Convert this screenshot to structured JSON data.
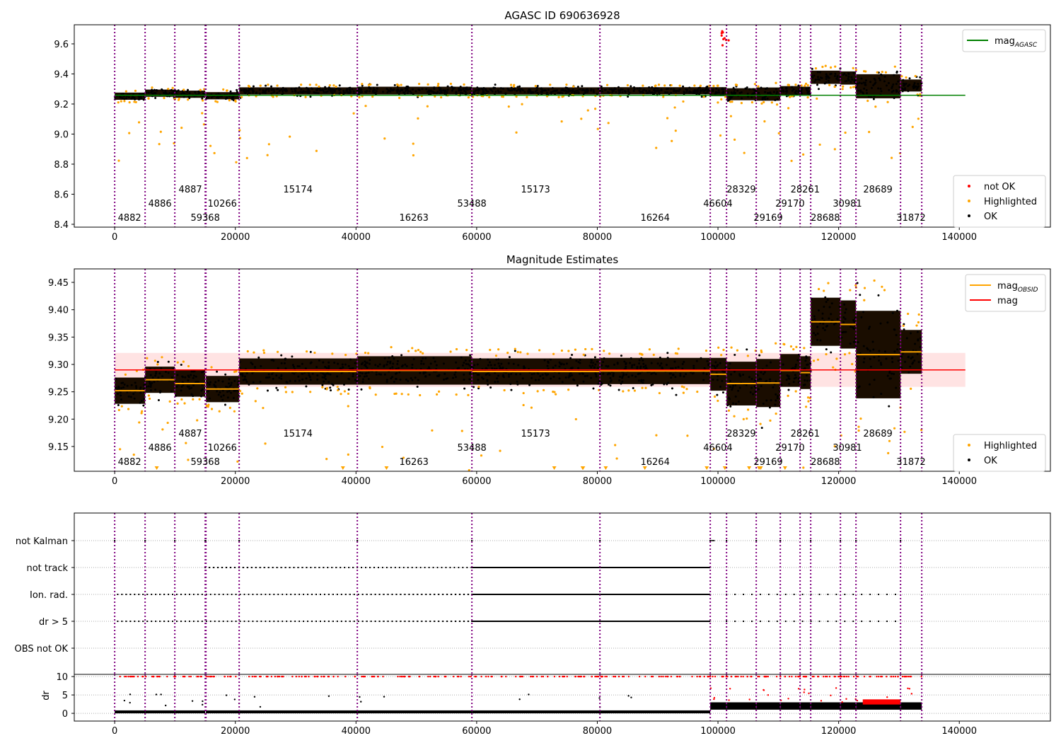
{
  "chart_data": [
    {
      "type": "scatter",
      "title": "AGASC ID 690636928",
      "ylim": [
        8.381,
        9.727
      ],
      "xlim": [
        -6700,
        155100
      ],
      "yticks": [
        "8.4",
        "8.6",
        "8.8",
        "9.0",
        "9.2",
        "9.4",
        "9.6"
      ],
      "legend_top": {
        "placement": "top-right",
        "entries": [
          {
            "label": "mag",
            "sub": "AGASC",
            "color": "#008000"
          }
        ]
      },
      "legend_bottom": {
        "placement": "bottom-right",
        "entries": [
          {
            "label": "not OK",
            "color": "#ff0000"
          },
          {
            "label": "Highlighted",
            "color": "#ffa500"
          },
          {
            "label": "OK",
            "color": "#000000"
          }
        ]
      },
      "mag_agasc": 9.258
    },
    {
      "type": "scatter",
      "title": "Magnitude Estimates",
      "ylim": [
        9.1047,
        9.4746
      ],
      "xlim": [
        -6700,
        155100
      ],
      "yticks": [
        "9.15",
        "9.20",
        "9.25",
        "9.30",
        "9.35",
        "9.40",
        "9.45"
      ],
      "legend_top": {
        "placement": "top-right",
        "entries": [
          {
            "label": "mag",
            "sub": "OBSID",
            "color": "#ffa500"
          },
          {
            "label": "mag",
            "sub": "",
            "color": "#ff0000"
          }
        ]
      },
      "legend_bottom": {
        "placement": "bottom-right",
        "entries": [
          {
            "label": "Highlighted",
            "color": "#ffa500"
          },
          {
            "label": "OK",
            "color": "#000000"
          }
        ]
      },
      "mag": 9.29,
      "mag_band": [
        9.259,
        9.321
      ]
    },
    {
      "type": "scatter",
      "title": "",
      "xlim": [
        -6700,
        155100
      ],
      "flag_rows": [
        "not Kalman",
        "not track",
        "Ion. rad.",
        "dr > 5",
        "OBS not OK"
      ],
      "dr_ylabel": "dr",
      "dr_yticks": [
        "0",
        "5",
        "10"
      ],
      "dr_ylim": [
        -2.1,
        10.6
      ]
    }
  ],
  "xticks": [
    "0",
    "20000",
    "40000",
    "60000",
    "80000",
    "100000",
    "120000",
    "140000"
  ],
  "boundaries": [
    0,
    5042,
    9966,
    15008,
    15125,
    20636,
    40216,
    59210,
    80432,
    98722,
    101419,
    106343,
    110330,
    113613,
    115371,
    120296,
    122875,
    130262,
    133779
  ],
  "obsids": [
    {
      "label": "4882",
      "x": 2460,
      "row": 0
    },
    {
      "label": "4886",
      "x": 7500,
      "row": 1
    },
    {
      "label": "4887",
      "x": 12540,
      "row": 2
    },
    {
      "label": "59368",
      "x": 15010,
      "row": 0
    },
    {
      "label": "10266",
      "x": 17830,
      "row": 1
    },
    {
      "label": "15174",
      "x": 30370,
      "row": 2
    },
    {
      "label": "16263",
      "x": 49600,
      "row": 0
    },
    {
      "label": "53488",
      "x": 59210,
      "row": 1
    },
    {
      "label": "15173",
      "x": 69760,
      "row": 2
    },
    {
      "label": "16264",
      "x": 89580,
      "row": 0
    },
    {
      "label": "46604",
      "x": 99990,
      "row": 1
    },
    {
      "label": "28329",
      "x": 103860,
      "row": 2
    },
    {
      "label": "29169",
      "x": 108320,
      "row": 0
    },
    {
      "label": "29170",
      "x": 111950,
      "row": 1
    },
    {
      "label": "28261",
      "x": 114450,
      "row": 2
    },
    {
      "label": "28688",
      "x": 117800,
      "row": 0
    },
    {
      "label": "30981",
      "x": 121450,
      "row": 1
    },
    {
      "label": "28689",
      "x": 126500,
      "row": 2
    },
    {
      "label": "31872",
      "x": 132000,
      "row": 0
    }
  ],
  "segments": [
    {
      "start": 0,
      "end": 5042,
      "mean": 9.252,
      "std": 0.012
    },
    {
      "start": 5042,
      "end": 9966,
      "mean": 9.272,
      "std": 0.012
    },
    {
      "start": 9966,
      "end": 15008,
      "mean": 9.265,
      "std": 0.012
    },
    {
      "start": 15125,
      "end": 20636,
      "mean": 9.255,
      "std": 0.012
    },
    {
      "start": 20636,
      "end": 40216,
      "mean": 9.287,
      "std": 0.012
    },
    {
      "start": 40216,
      "end": 59210,
      "mean": 9.289,
      "std": 0.013
    },
    {
      "start": 59210,
      "end": 80432,
      "mean": 9.287,
      "std": 0.012
    },
    {
      "start": 80432,
      "end": 98722,
      "mean": 9.288,
      "std": 0.012
    },
    {
      "start": 98722,
      "end": 101419,
      "mean": 9.282,
      "std": 0.015
    },
    {
      "start": 101419,
      "end": 106343,
      "mean": 9.265,
      "std": 0.02
    },
    {
      "start": 106343,
      "end": 110330,
      "mean": 9.266,
      "std": 0.022
    },
    {
      "start": 110330,
      "end": 113613,
      "mean": 9.289,
      "std": 0.015
    },
    {
      "start": 113613,
      "end": 115371,
      "mean": 9.285,
      "std": 0.015
    },
    {
      "start": 115371,
      "end": 120296,
      "mean": 9.378,
      "std": 0.022
    },
    {
      "start": 120296,
      "end": 122875,
      "mean": 9.373,
      "std": 0.022
    },
    {
      "start": 122875,
      "end": 130262,
      "mean": 9.318,
      "std": 0.04
    },
    {
      "start": 130262,
      "end": 133779,
      "mean": 9.323,
      "std": 0.02
    }
  ],
  "flag_spans": [
    [
      [
        0,
        0,
        1
      ],
      [
        5042,
        5042,
        1
      ],
      [
        9966,
        9966,
        1
      ],
      [
        15008,
        15125,
        60
      ],
      [
        20636,
        20636,
        1
      ],
      [
        40216,
        40216,
        1
      ],
      [
        59210,
        59210,
        1
      ],
      [
        80432,
        80432,
        1
      ],
      [
        98722,
        99500,
        300
      ],
      [
        101419,
        101419,
        1
      ],
      [
        106343,
        106343,
        1
      ],
      [
        110330,
        110330,
        1
      ],
      [
        115371,
        115371,
        1
      ],
      [
        120296,
        120296,
        1
      ],
      [
        122875,
        122875,
        1
      ],
      [
        130262,
        130262,
        1
      ]
    ],
    [
      [
        15008,
        59210,
        700
      ],
      [
        59210,
        98722,
        180
      ]
    ],
    [
      [
        500,
        59210,
        700
      ],
      [
        59210,
        98722,
        180
      ],
      [
        101419,
        130000,
        1400
      ]
    ],
    [
      [
        500,
        59210,
        700
      ],
      [
        59210,
        98722,
        180
      ],
      [
        101419,
        130000,
        1400
      ]
    ],
    []
  ],
  "colors": {
    "ok": "#000000",
    "highlighted": "#ffa500",
    "not_ok": "#ff0000",
    "boundary": "#800080",
    "agasc": "#008000",
    "mag": "#ff0000",
    "band": "#ffcccc"
  }
}
